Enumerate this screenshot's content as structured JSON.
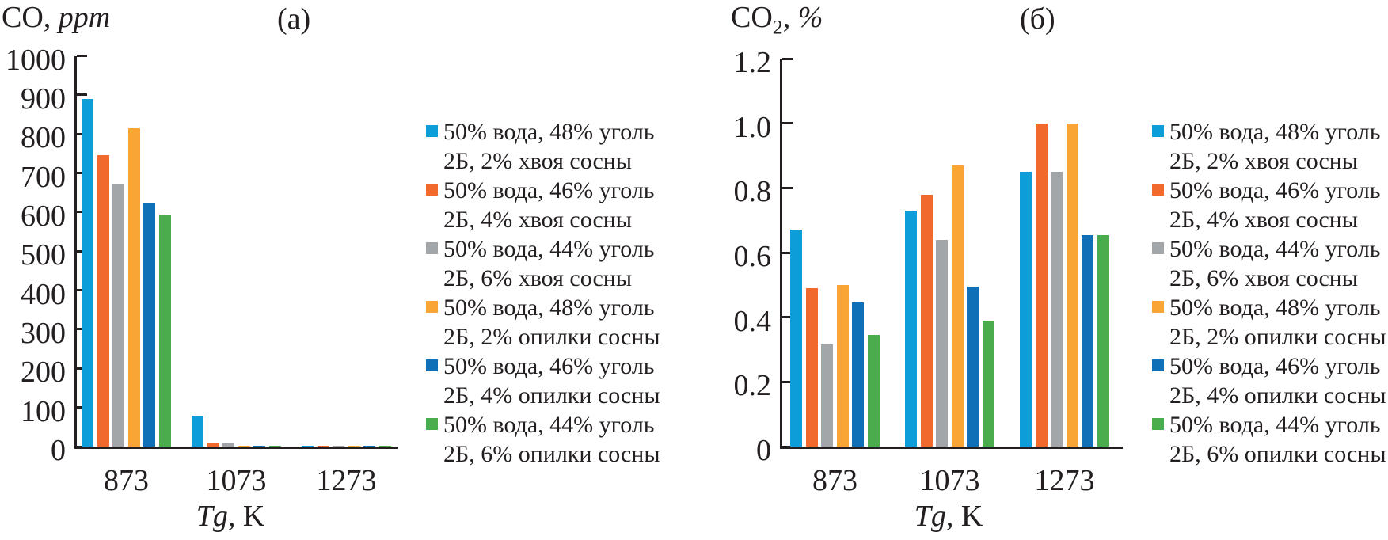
{
  "chart_data": [
    {
      "type": "bar",
      "panel_label": "(a)",
      "title": "CO, ppm",
      "ylabel_parts": {
        "pre": "CO",
        "sub": "",
        "post": ",",
        "unit": "ppm"
      },
      "xlabel": "Tg, K",
      "xlabel_parts": {
        "var": "Tg",
        "post": ", K"
      },
      "categories": [
        "873",
        "1073",
        "1273"
      ],
      "ylim": [
        0,
        1000
      ],
      "yticks": [
        "0",
        "100",
        "200",
        "300",
        "400",
        "500",
        "600",
        "700",
        "800",
        "900",
        "1000"
      ],
      "grid": false,
      "legend_position": "right",
      "series": [
        {
          "name": "50% вода, 48% уголь 2Б, 2% хвоя сосны",
          "legend": [
            "50% вода, 48% уголь",
            "2Б, 2% хвоя сосны"
          ],
          "color": "#0d9ed9",
          "values": [
            890,
            80,
            3
          ]
        },
        {
          "name": "50% вода, 46% уголь 2Б, 4% хвоя сосны",
          "legend": [
            "50% вода, 46% уголь",
            "2Б, 4% хвоя сосны"
          ],
          "color": "#f2692d",
          "values": [
            745,
            8,
            3
          ]
        },
        {
          "name": "50% вода, 44% уголь 2Б, 6% хвоя сосны",
          "legend": [
            "50% вода, 44% уголь",
            "2Б, 6% хвоя сосны"
          ],
          "color": "#a3a6a8",
          "values": [
            673,
            8,
            2
          ]
        },
        {
          "name": "50% вода, 48% уголь 2Б, 2% опилки сосны",
          "legend": [
            "50% вода, 48% уголь",
            "2Б, 2% опилки сосны"
          ],
          "color": "#f9a536",
          "values": [
            815,
            2,
            2
          ]
        },
        {
          "name": "50% вода, 46% уголь 2Б, 4% опилки сосны",
          "legend": [
            "50% вода, 46% уголь",
            "2Б, 4% опилки сосны"
          ],
          "color": "#0f6fb7",
          "values": [
            625,
            2,
            1
          ]
        },
        {
          "name": "50% вода, 44% уголь 2Б, 6% опилки сосны",
          "legend": [
            "50% вода, 44% уголь",
            "2Б, 6% опилки сосны"
          ],
          "color": "#4bac4e",
          "values": [
            593,
            2,
            1
          ]
        }
      ]
    },
    {
      "type": "bar",
      "panel_label": "(б)",
      "title": "CO2, %",
      "ylabel_parts": {
        "pre": "CO",
        "sub": "2",
        "post": ",",
        "unit": "%"
      },
      "xlabel": "Tg, K",
      "xlabel_parts": {
        "var": "Tg",
        "post": ", K"
      },
      "categories": [
        "873",
        "1073",
        "1273"
      ],
      "ylim": [
        0,
        1.2
      ],
      "yticks": [
        "0",
        "0.2",
        "0.4",
        "0.6",
        "0.8",
        "1.0",
        "1.2"
      ],
      "grid": false,
      "legend_position": "right",
      "series": [
        {
          "name": "50% вода, 48% уголь 2Б, 2% хвоя сосны",
          "legend": [
            "50% вода, 48% уголь",
            "2Б, 2% хвоя сосны"
          ],
          "color": "#0d9ed9",
          "values": [
            0.67,
            0.73,
            0.85
          ]
        },
        {
          "name": "50% вода, 46% уголь 2Б, 4% хвоя сосны",
          "legend": [
            "50% вода, 46% уголь",
            "2Б, 4% хвоя сосны"
          ],
          "color": "#f2692d",
          "values": [
            0.49,
            0.78,
            1.0
          ]
        },
        {
          "name": "50% вода, 44% уголь 2Б, 6% хвоя сосны",
          "legend": [
            "50% вода, 44% уголь",
            "2Б, 6% хвоя сосны"
          ],
          "color": "#a3a6a8",
          "values": [
            0.315,
            0.64,
            0.85
          ]
        },
        {
          "name": "50% вода, 48% уголь 2Б, 2% опилки сосны",
          "legend": [
            "50% вода, 48% уголь",
            "2Б, 2% опилки сосны"
          ],
          "color": "#f9a536",
          "values": [
            0.5,
            0.87,
            1.0
          ]
        },
        {
          "name": "50% вода, 46% уголь 2Б, 4% опилки сосны",
          "legend": [
            "50% вода, 46% уголь",
            "2Б, 4% опилки сосны"
          ],
          "color": "#0f6fb7",
          "values": [
            0.445,
            0.495,
            0.655
          ]
        },
        {
          "name": "50% вода, 44% уголь 2Б, 6% опилки сосны",
          "legend": [
            "50% вода, 44% уголь",
            "2Б, 6% опилки сосны"
          ],
          "color": "#4bac4e",
          "values": [
            0.345,
            0.39,
            0.655
          ]
        }
      ]
    }
  ],
  "style": {
    "axis_color": "#231f20",
    "background": "#ffffff"
  }
}
